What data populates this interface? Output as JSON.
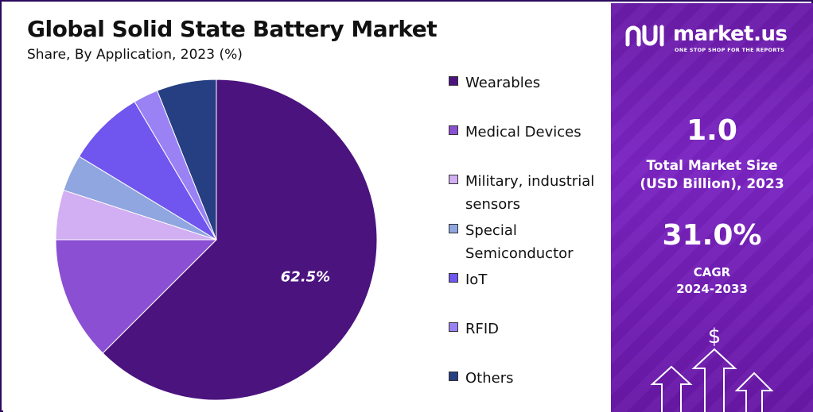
{
  "header": {
    "title": "Global Solid State Battery Market",
    "subtitle": "Share, By Application, 2023 (%)"
  },
  "chart_data": {
    "type": "pie",
    "title": "Global Solid State Battery Market",
    "subtitle": "Share, By Application, 2023 (%)",
    "legend_position": "right",
    "slices": [
      {
        "label": "Wearables",
        "value": 62.5,
        "color": "#4b137e",
        "data_label": "62.5%"
      },
      {
        "label": "Medical Devices",
        "value": 12.5,
        "color": "#8b4fd3",
        "data_label": ""
      },
      {
        "label": "Military, industrial sensors",
        "value": 5.0,
        "color": "#d2aef2",
        "data_label": ""
      },
      {
        "label": "Special Semiconductor",
        "value": 3.7,
        "color": "#8fa6e0",
        "data_label": ""
      },
      {
        "label": "IoT",
        "value": 7.8,
        "color": "#7055ee",
        "data_label": ""
      },
      {
        "label": "RFID",
        "value": 2.5,
        "color": "#9a82f5",
        "data_label": ""
      },
      {
        "label": "Others",
        "value": 6.0,
        "color": "#263f82",
        "data_label": ""
      }
    ]
  },
  "sidebar": {
    "brand": "market.us",
    "tagline": "ONE STOP SHOP FOR THE REPORTS",
    "market_size_value": "1.0",
    "market_size_label_line1": "Total Market Size",
    "market_size_label_line2": "(USD Billion), 2023",
    "cagr_value": "31.0%",
    "cagr_label_line1": "CAGR",
    "cagr_label_line2": "2024-2033",
    "dollar_symbol": "$"
  },
  "colors": {
    "sidebar_background": "#7220b6",
    "frame_border": "#2a0a5e"
  }
}
